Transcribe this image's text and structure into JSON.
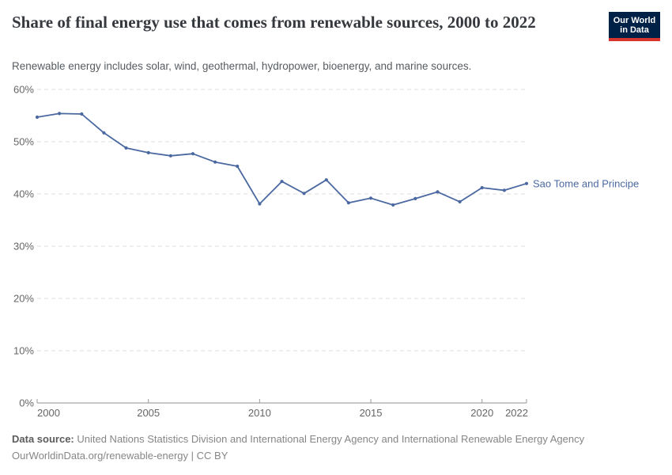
{
  "header": {
    "title": "Share of final energy use that comes from renewable sources, 2000 to 2022",
    "subtitle": "Renewable energy includes solar, wind, geothermal, hydropower, bioenergy, and marine sources.",
    "logo": {
      "line1": "Our World",
      "line2": "in Data",
      "bg_color": "#002147",
      "bar_color": "#d8352e"
    }
  },
  "chart_data": {
    "type": "line",
    "title": "Share of final energy use that comes from renewable sources, 2000 to 2022",
    "x": [
      2000,
      2001,
      2002,
      2003,
      2004,
      2005,
      2006,
      2007,
      2008,
      2009,
      2010,
      2011,
      2012,
      2013,
      2014,
      2015,
      2016,
      2017,
      2018,
      2019,
      2020,
      2021,
      2022
    ],
    "series": [
      {
        "name": "Sao Tome and Principe",
        "color": "#4b69a0",
        "values": [
          54.7,
          55.4,
          55.3,
          51.7,
          48.8,
          47.9,
          47.3,
          47.7,
          46.1,
          45.3,
          38.1,
          42.4,
          40.1,
          42.7,
          38.3,
          39.2,
          37.9,
          39.1,
          40.4,
          38.5,
          41.2,
          40.7,
          42.0
        ]
      }
    ],
    "xlabel": "",
    "ylabel": "",
    "ylim": [
      0,
      60
    ],
    "yticks": [
      0,
      10,
      20,
      30,
      40,
      50,
      60
    ],
    "ytick_suffix": "%",
    "xticks": [
      2000,
      2005,
      2010,
      2015,
      2020,
      2022
    ],
    "grid": "horizontal-dashed",
    "legend_position": "line-end-label"
  },
  "footer": {
    "source_label": "Data source:",
    "source_text": " United Nations Statistics Division and International Energy Agency and International Renewable Energy Agency",
    "link_text": "OurWorldinData.org/renewable-energy",
    "divider": " | ",
    "license_text": "CC BY"
  }
}
